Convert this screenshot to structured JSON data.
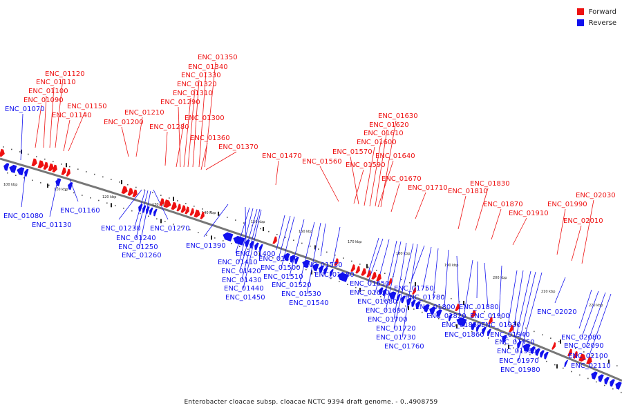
{
  "legend": [
    {
      "label": "Forward",
      "color": "#ee1111"
    },
    {
      "label": "Reverse",
      "color": "#1111ee"
    }
  ],
  "caption": "Enterobacter cloacae subsp. cloacae NCTC 9394 draft genome. - 0..4908759",
  "colors": {
    "forward": "#ee1111",
    "reverse": "#1111ee",
    "backbone": "#777777"
  },
  "ticks": [
    "100 kbp",
    "110 kbp",
    "120 kbp",
    "130 kbp",
    "140 kbp",
    "150 kbp",
    "160 kbp",
    "170 kbp",
    "180 kbp",
    "190 kbp",
    "200 kbp",
    "210 kbp",
    "220 kbp"
  ],
  "forward_genes": [
    "ENC_01120",
    "ENC_01110",
    "ENC_01100",
    "ENC_01090",
    "ENC_01150",
    "ENC_01140",
    "ENC_01210",
    "ENC_01200",
    "ENC_01350",
    "ENC_01340",
    "ENC_01330",
    "ENC_01320",
    "ENC_01310",
    "ENC_01290",
    "ENC_01300",
    "ENC_01280",
    "ENC_01360",
    "ENC_01370",
    "ENC_01470",
    "ENC_01560",
    "ENC_01630",
    "ENC_01620",
    "ENC_01610",
    "ENC_01600",
    "ENC_01570",
    "ENC_01640",
    "ENC_01590",
    "ENC_01670",
    "ENC_01710",
    "ENC_01830",
    "ENC_01810",
    "ENC_01870",
    "ENC_01910",
    "ENC_02030",
    "ENC_01990",
    "ENC_02010"
  ],
  "reverse_genes": [
    "ENC_01070",
    "ENC_01080",
    "ENC_01130",
    "ENC_01160",
    "ENC_01230",
    "ENC_01270",
    "ENC_01240",
    "ENC_01250",
    "ENC_01260",
    "ENC_01390",
    "ENC_01400",
    "ENC_01410",
    "ENC_01420",
    "ENC_01430",
    "ENC_01440",
    "ENC_01450",
    "ENC_01490",
    "ENC_01500",
    "ENC_01510",
    "ENC_01520",
    "ENC_01530",
    "ENC_01540",
    "ENC_01550",
    "ENC_01580",
    "ENC_01650",
    "ENC_01660",
    "ENC_01680",
    "ENC_01690",
    "ENC_01700",
    "ENC_01720",
    "ENC_01730",
    "ENC_01760",
    "ENC_01750",
    "ENC_01780",
    "ENC_01800",
    "ENC_01820",
    "ENC_01850",
    "ENC_01860",
    "ENC_01880",
    "ENC_01900",
    "ENC_01930",
    "ENC_01940",
    "ENC_01950",
    "ENC_01960",
    "ENC_01970",
    "ENC_01980",
    "ENC_02020",
    "ENC_02080",
    "ENC_02090",
    "ENC_02100",
    "ENC_02110"
  ]
}
